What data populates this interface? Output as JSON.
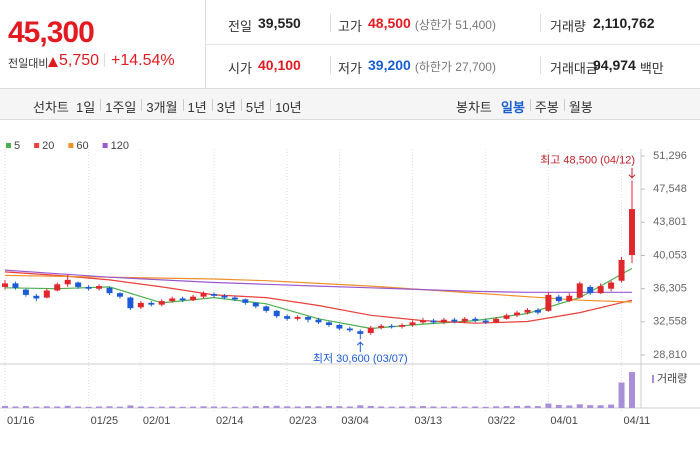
{
  "header": {
    "price": "45,300",
    "change_label": "전일대비",
    "change": "5,750",
    "change_rate": "+14.54%",
    "stats": [
      {
        "label": "전일",
        "value": "39,550",
        "color": "#222222"
      },
      {
        "label": "고가",
        "value": "48,500",
        "note": "(상한가 51,400)",
        "color": "#e21b22"
      },
      {
        "label": "거래량",
        "value": "2,110,762",
        "color": "#222222"
      },
      {
        "label": "시가",
        "value": "40,100",
        "color": "#e21b22"
      },
      {
        "label": "저가",
        "value": "39,200",
        "note": "(하한가 27,700)",
        "color": "#1a5fd0"
      },
      {
        "label": "거래대금",
        "value": "94,974",
        "unit": "백만",
        "color": "#222222"
      }
    ]
  },
  "tabs": {
    "line_chart": "선차트",
    "line_periods": [
      "1일",
      "1주일",
      "3개월",
      "1년",
      "3년",
      "5년",
      "10년"
    ],
    "candle_chart": "봉차트",
    "candle_periods": [
      "일봉",
      "주봉",
      "월봉"
    ],
    "selected_index": 0
  },
  "chart_data": {
    "type": "candlestick",
    "categories": [
      "01/16",
      null,
      null,
      null,
      null,
      null,
      null,
      null,
      "01/25",
      null,
      null,
      null,
      null,
      "02/01",
      null,
      null,
      null,
      null,
      null,
      null,
      "02/14",
      null,
      null,
      null,
      null,
      null,
      null,
      "02/23",
      null,
      null,
      null,
      null,
      "03/04",
      null,
      null,
      null,
      null,
      null,
      null,
      "03/13",
      null,
      null,
      null,
      null,
      null,
      null,
      "03/22",
      null,
      null,
      null,
      null,
      null,
      "04/01",
      null,
      null,
      null,
      null,
      null,
      null,
      "04/11",
      null
    ],
    "open": [
      36500,
      36900,
      36200,
      35500,
      35300,
      36100,
      36800,
      37000,
      36500,
      36300,
      36400,
      35800,
      35300,
      34200,
      34700,
      34500,
      34900,
      35200,
      35000,
      35400,
      35700,
      35500,
      35300,
      35100,
      34700,
      34300,
      33800,
      33200,
      32900,
      33100,
      32800,
      32500,
      32200,
      31800,
      31500,
      31300,
      31900,
      32100,
      32000,
      32200,
      32500,
      32700,
      32500,
      32800,
      32600,
      32900,
      32700,
      32500,
      32900,
      33300,
      33600,
      33900,
      33800,
      35400,
      34900,
      35300,
      36500,
      35800,
      36300,
      37200,
      40100
    ],
    "high": [
      37300,
      37100,
      36300,
      35700,
      36300,
      37000,
      37900,
      37100,
      36700,
      36800,
      36500,
      35900,
      35400,
      34900,
      34900,
      35100,
      35400,
      35400,
      35600,
      36000,
      35900,
      35700,
      35500,
      35200,
      34800,
      34400,
      33900,
      33400,
      33300,
      33200,
      33000,
      32600,
      32300,
      32000,
      31700,
      32100,
      32300,
      32300,
      32400,
      32700,
      33000,
      32900,
      33000,
      33000,
      33100,
      33100,
      32900,
      33100,
      33500,
      33800,
      34100,
      34100,
      35900,
      35600,
      35800,
      37100,
      36700,
      36900,
      37200,
      39900,
      48500
    ],
    "low": [
      36200,
      36200,
      35400,
      34900,
      35200,
      36000,
      36500,
      36300,
      36100,
      36100,
      35600,
      35200,
      33900,
      34000,
      34300,
      34300,
      34700,
      34800,
      34900,
      35200,
      35300,
      35100,
      34900,
      34500,
      34100,
      33600,
      33000,
      32700,
      32700,
      32500,
      32300,
      32000,
      31600,
      31400,
      30600,
      31100,
      31700,
      31800,
      31800,
      32000,
      32300,
      32300,
      32300,
      32400,
      32400,
      32500,
      32300,
      32400,
      32800,
      33100,
      33400,
      33400,
      33700,
      34700,
      34800,
      35200,
      35600,
      35700,
      36000,
      37000,
      39200
    ],
    "close": [
      36900,
      36400,
      35600,
      35200,
      36100,
      36800,
      37300,
      36500,
      36300,
      36600,
      35800,
      35400,
      34100,
      34700,
      34500,
      34900,
      35200,
      35000,
      35400,
      35800,
      35500,
      35300,
      35100,
      34700,
      34300,
      33800,
      33200,
      32900,
      33100,
      32800,
      32500,
      32200,
      31800,
      31600,
      31200,
      31900,
      32100,
      32000,
      32200,
      32500,
      32700,
      32500,
      32800,
      32600,
      32900,
      32700,
      32500,
      32900,
      33300,
      33600,
      33900,
      33600,
      35600,
      34900,
      35500,
      36900,
      35800,
      36600,
      37000,
      39550,
      45300
    ],
    "up_color": "#e0272d",
    "down_color": "#1d5bd6",
    "ylim": [
      28810,
      51296
    ],
    "yticks": [
      {
        "value": 28810,
        "label": "28,810"
      },
      {
        "value": 32558,
        "label": "32,558"
      },
      {
        "value": 36305,
        "label": "36,305"
      },
      {
        "value": 40053,
        "label": "40,053"
      },
      {
        "value": 43801,
        "label": "43,801"
      },
      {
        "value": 47548,
        "label": "47,548"
      },
      {
        "value": 51296,
        "label": "51,296"
      }
    ],
    "moving_averages": [
      {
        "name": "5",
        "color": "#4caf50",
        "x": [
          0,
          5,
          10,
          15,
          20,
          25,
          30,
          35,
          40,
          45,
          50,
          55,
          60
        ],
        "values": [
          36400,
          36300,
          36500,
          34700,
          35300,
          34600,
          32900,
          31800,
          32300,
          32700,
          33500,
          35300,
          38600
        ]
      },
      {
        "name": "20",
        "color": "#e8413c",
        "x": [
          0,
          5,
          10,
          15,
          20,
          25,
          30,
          35,
          40,
          45,
          50,
          55,
          60
        ],
        "values": [
          38200,
          37800,
          37300,
          36500,
          35600,
          35300,
          34400,
          33300,
          32700,
          32400,
          32600,
          33600,
          35000
        ]
      },
      {
        "name": "60",
        "color": "#f0902a",
        "x": [
          0,
          5,
          10,
          15,
          20,
          25,
          30,
          35,
          40,
          45,
          50,
          55,
          60
        ],
        "values": [
          37800,
          37700,
          37600,
          37500,
          37400,
          37200,
          36900,
          36600,
          36200,
          35800,
          35400,
          35000,
          34800
        ]
      },
      {
        "name": "120",
        "color": "#9b59d0",
        "x": [
          0,
          5,
          10,
          15,
          20,
          25,
          30,
          35,
          40,
          45,
          50,
          55,
          60
        ],
        "values": [
          38400,
          38000,
          37600,
          37300,
          37000,
          36800,
          36600,
          36400,
          36200,
          36000,
          35900,
          35900,
          35900
        ]
      }
    ],
    "volume": {
      "name": "거래량",
      "color": "#a98fd8",
      "ylim": [
        0,
        2350000
      ],
      "values": [
        120000,
        90000,
        110000,
        80000,
        100000,
        90000,
        130000,
        80000,
        70000,
        90000,
        100000,
        80000,
        150000,
        90000,
        70000,
        80000,
        90000,
        70000,
        80000,
        100000,
        90000,
        80000,
        70000,
        90000,
        110000,
        120000,
        130000,
        100000,
        90000,
        110000,
        100000,
        120000,
        110000,
        90000,
        160000,
        120000,
        90000,
        80000,
        90000,
        100000,
        110000,
        90000,
        80000,
        90000,
        80000,
        90000,
        70000,
        100000,
        110000,
        120000,
        130000,
        110000,
        260000,
        180000,
        150000,
        220000,
        170000,
        160000,
        200000,
        1500000,
        2110762
      ]
    },
    "high_label": "최고 48,500 (04/12)",
    "low_label": "최저 30,600 (03/07)"
  }
}
